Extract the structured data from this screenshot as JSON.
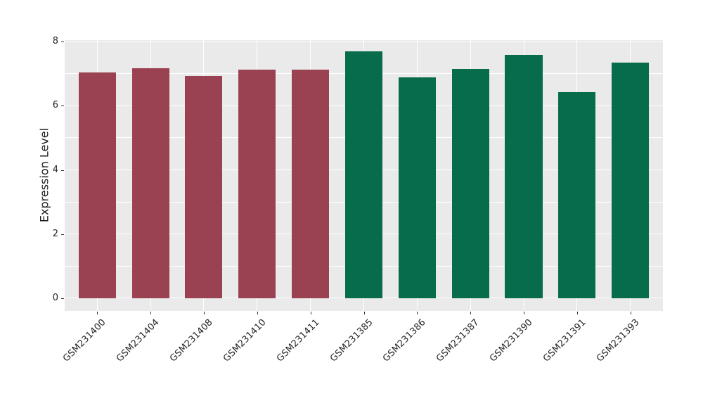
{
  "chart_data": {
    "type": "bar",
    "title": "",
    "xlabel": "",
    "ylabel": "Expression Level",
    "categories": [
      "GSM231400",
      "GSM231404",
      "GSM231408",
      "GSM231410",
      "GSM231411",
      "GSM231385",
      "GSM231386",
      "GSM231387",
      "GSM231390",
      "GSM231391",
      "GSM231393"
    ],
    "values": [
      7.05,
      7.18,
      6.93,
      7.13,
      7.13,
      7.69,
      6.88,
      7.16,
      7.58,
      6.43,
      7.35
    ],
    "bar_colors": [
      "#9B4252",
      "#9B4252",
      "#9B4252",
      "#9B4252",
      "#9B4252",
      "#066C4B",
      "#066C4B",
      "#066C4B",
      "#066C4B",
      "#066C4B",
      "#066C4B"
    ],
    "color_groups": [
      {
        "color": "#9B4252",
        "categories": [
          "GSM231400",
          "GSM231404",
          "GSM231408",
          "GSM231410",
          "GSM231411"
        ]
      },
      {
        "color": "#066C4B",
        "categories": [
          "GSM231385",
          "GSM231386",
          "GSM231387",
          "GSM231390",
          "GSM231391",
          "GSM231393"
        ]
      }
    ],
    "ylim": [
      -0.4,
      8.05
    ],
    "xlim": [
      -0.61,
      10.61
    ],
    "yticks": [
      0,
      2,
      4,
      6,
      8
    ],
    "ytick_labels": [
      "0",
      "2",
      "4",
      "6",
      "8"
    ],
    "gridlines_y": [
      0,
      1,
      2,
      3,
      4,
      5,
      6,
      7,
      8
    ],
    "bar_width_units": 0.7,
    "grid": true,
    "legend": "none",
    "x_label_rotation_deg": 45,
    "colors": {
      "panel_background": "#EAEAEA",
      "gridline": "#FFFFFF",
      "figure_background": "#FFFFFF",
      "tick": "#333333",
      "text": "#262626"
    }
  }
}
